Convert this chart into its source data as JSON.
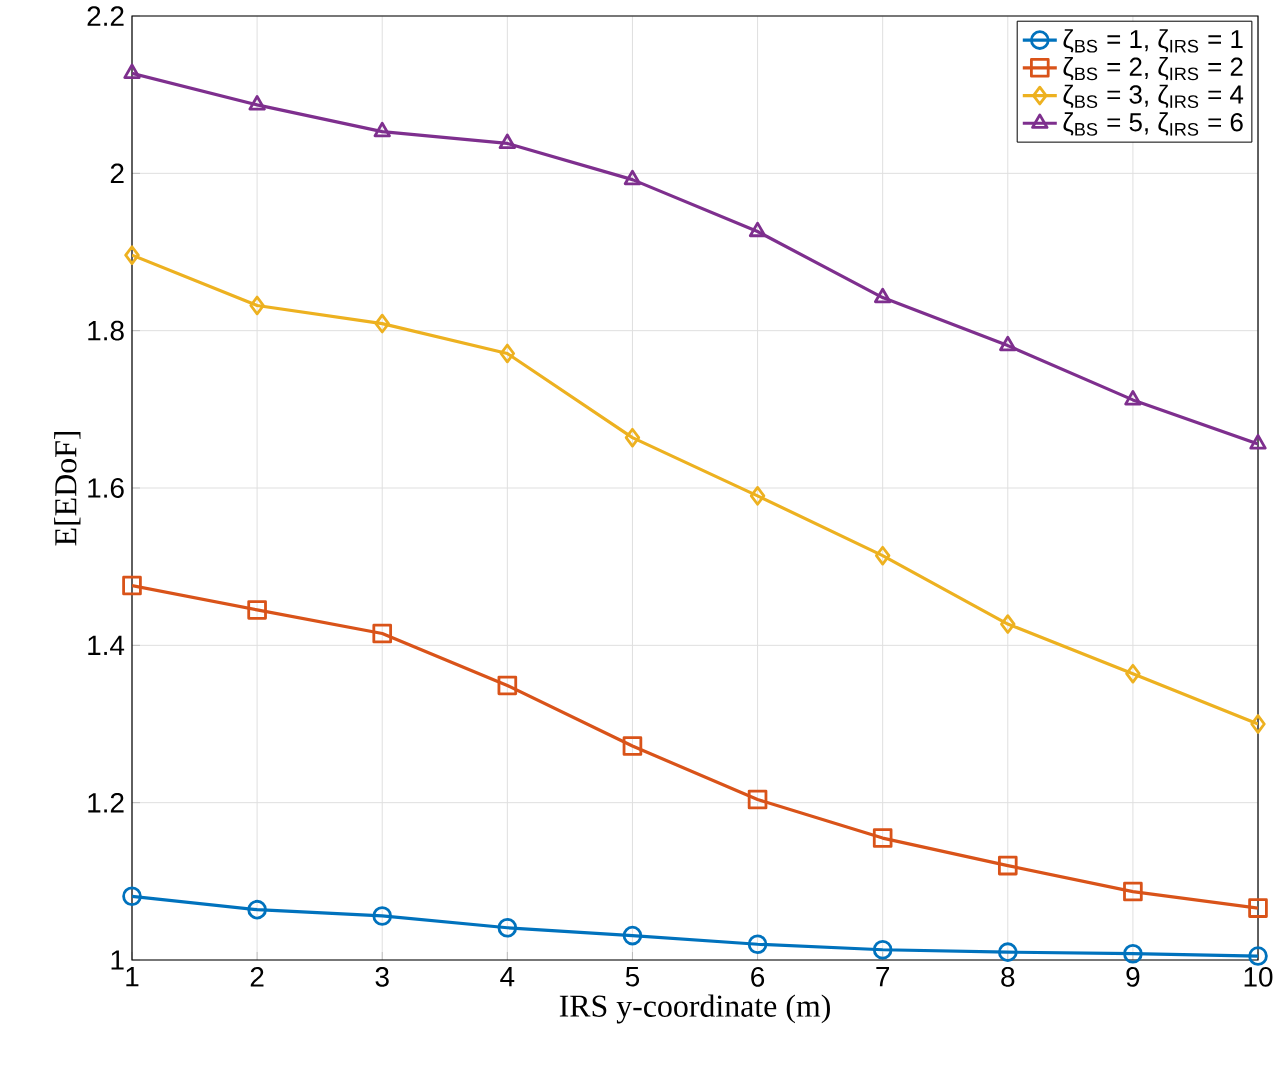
{
  "chart_data": {
    "type": "line",
    "xlabel": "IRS y-coordinate (m)",
    "ylabel": "E[EDoF]",
    "x": [
      1,
      2,
      3,
      4,
      5,
      6,
      7,
      8,
      9,
      10
    ],
    "series": [
      {
        "name": "ζ$_{BS}$ = 1,  ζ$_{IRS}$ = 1",
        "color": "#0072bd",
        "marker": "circle",
        "values": [
          1.081,
          1.064,
          1.056,
          1.041,
          1.031,
          1.02,
          1.013,
          1.01,
          1.008,
          1.005
        ]
      },
      {
        "name": "ζ$_{BS}$ = 2,  ζ$_{IRS}$ = 2",
        "color": "#d95319",
        "marker": "square",
        "values": [
          1.476,
          1.445,
          1.415,
          1.349,
          1.272,
          1.204,
          1.155,
          1.12,
          1.087,
          1.066
        ]
      },
      {
        "name": "ζ$_{BS}$ = 3,  ζ$_{IRS}$ = 4",
        "color": "#edb120",
        "marker": "diamond",
        "values": [
          1.896,
          1.832,
          1.809,
          1.771,
          1.664,
          1.59,
          1.514,
          1.427,
          1.364,
          1.3
        ]
      },
      {
        "name": "ζ$_{BS}$ = 5,  ζ$_{IRS}$ = 6",
        "color": "#7e2f8e",
        "marker": "triangle",
        "values": [
          2.127,
          2.087,
          2.053,
          2.038,
          1.992,
          1.926,
          1.842,
          1.781,
          1.712,
          1.656
        ]
      }
    ],
    "xlim": [
      1,
      10
    ],
    "ylim": [
      1,
      2.2
    ],
    "xticks": [
      1,
      2,
      3,
      4,
      5,
      6,
      7,
      8,
      9,
      10
    ],
    "yticks": [
      1,
      1.2,
      1.4,
      1.6,
      1.8,
      2,
      2.2
    ],
    "grid": true,
    "legend": "top right",
    "line_style": "solid"
  }
}
